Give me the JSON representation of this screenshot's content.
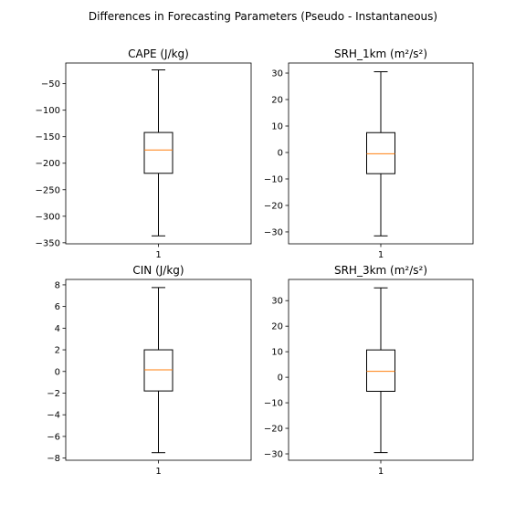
{
  "suptitle": "Differences in Forecasting Parameters (Pseudo - Instantaneous)",
  "chart_data": [
    {
      "type": "box",
      "title": "CAPE (J/kg)",
      "categories": [
        "1"
      ],
      "box": {
        "whisker_low": -337,
        "q1": -219,
        "median": -175,
        "q3": -142,
        "whisker_high": -24
      },
      "ylim": [
        -352,
        -11
      ],
      "yticks": [
        -50,
        -100,
        -150,
        -200,
        -250,
        -300,
        -350
      ],
      "yticklabels": [
        "−50",
        "−100",
        "−150",
        "−200",
        "−250",
        "−300",
        "−350"
      ]
    },
    {
      "type": "box",
      "title": "SRH_1km (m²/s²)",
      "categories": [
        "1"
      ],
      "box": {
        "whisker_low": -31.5,
        "q1": -8,
        "median": -0.5,
        "q3": 7.5,
        "whisker_high": 30.5
      },
      "ylim": [
        -34.5,
        33.8
      ],
      "yticks": [
        30,
        20,
        10,
        0,
        -10,
        -20,
        -30
      ],
      "yticklabels": [
        "30",
        "20",
        "10",
        "0",
        "−10",
        "−20",
        "−30"
      ]
    },
    {
      "type": "box",
      "title": "CIN (J/kg)",
      "categories": [
        "1"
      ],
      "box": {
        "whisker_low": -7.5,
        "q1": -1.8,
        "median": 0.15,
        "q3": 2.0,
        "whisker_high": 7.75
      },
      "ylim": [
        -8.2,
        8.5
      ],
      "yticks": [
        8,
        6,
        4,
        2,
        0,
        -2,
        -4,
        -6,
        -8
      ],
      "yticklabels": [
        "8",
        "6",
        "4",
        "2",
        "0",
        "−2",
        "−4",
        "−6",
        "−8"
      ]
    },
    {
      "type": "box",
      "title": "SRH_3km (m²/s²)",
      "categories": [
        "1"
      ],
      "box": {
        "whisker_low": -29.5,
        "q1": -5.5,
        "median": 2.3,
        "q3": 10.7,
        "whisker_high": 35
      },
      "ylim": [
        -32.5,
        38.3
      ],
      "yticks": [
        30,
        20,
        10,
        0,
        -10,
        -20,
        -30
      ],
      "yticklabels": [
        "30",
        "20",
        "10",
        "0",
        "−10",
        "−20",
        "−30"
      ]
    }
  ],
  "colors": {
    "median": "#ff7f0e",
    "box": "#000000",
    "background": "#ffffff"
  }
}
